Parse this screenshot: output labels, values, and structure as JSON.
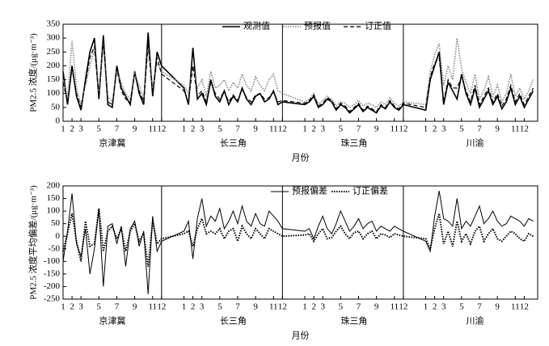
{
  "chart_data": [
    {
      "type": "line",
      "ylabel": "PM2.5 浓度/(μg·m⁻³)",
      "xlabel": "月份",
      "regions": [
        "京津冀",
        "长三角",
        "珠三角",
        "川渝"
      ],
      "xlim": [
        0,
        53
      ],
      "ylim": [
        0,
        350
      ],
      "yticks": [
        0,
        50,
        100,
        150,
        200,
        250,
        300,
        350
      ],
      "xticks": [
        {
          "value": 0,
          "label": "1"
        },
        {
          "value": 1,
          "label": "2"
        },
        {
          "value": 2,
          "label": "3"
        },
        {
          "value": 4,
          "label": "5"
        },
        {
          "value": 6,
          "label": "7"
        },
        {
          "value": 8,
          "label": "9"
        },
        {
          "value": 10,
          "label": "11"
        },
        {
          "value": 11,
          "label": "12"
        },
        {
          "value": 13.5,
          "label": "1"
        },
        {
          "value": 14.5,
          "label": "2"
        },
        {
          "value": 15.5,
          "label": "3"
        },
        {
          "value": 17.5,
          "label": "5"
        },
        {
          "value": 19.5,
          "label": "7"
        },
        {
          "value": 21.5,
          "label": "9"
        },
        {
          "value": 23.5,
          "label": "11"
        },
        {
          "value": 24.5,
          "label": "12"
        },
        {
          "value": 27,
          "label": "1"
        },
        {
          "value": 28,
          "label": "2"
        },
        {
          "value": 29,
          "label": "3"
        },
        {
          "value": 31,
          "label": "5"
        },
        {
          "value": 33,
          "label": "7"
        },
        {
          "value": 35,
          "label": "9"
        },
        {
          "value": 37,
          "label": "11"
        },
        {
          "value": 38,
          "label": "12"
        },
        {
          "value": 40.5,
          "label": "1"
        },
        {
          "value": 41.5,
          "label": "2"
        },
        {
          "value": 42.5,
          "label": "3"
        },
        {
          "value": 44.5,
          "label": "5"
        },
        {
          "value": 46.5,
          "label": "7"
        },
        {
          "value": 48.5,
          "label": "9"
        },
        {
          "value": 50.5,
          "label": "11"
        },
        {
          "value": 51.5,
          "label": "12"
        }
      ],
      "x": [
        0,
        0.5,
        1,
        1.5,
        2,
        2.5,
        3,
        3.5,
        4,
        4.5,
        5,
        5.5,
        6,
        6.5,
        7,
        7.5,
        8,
        8.5,
        9,
        9.5,
        10,
        10.5,
        11,
        13.5,
        14,
        14.5,
        15,
        15.5,
        16,
        16.5,
        17,
        17.5,
        18,
        18.5,
        19,
        19.5,
        20,
        20.5,
        21,
        21.5,
        22,
        22.5,
        23,
        23.5,
        24,
        24.5,
        27,
        27.5,
        28,
        28.5,
        29,
        29.5,
        30,
        30.5,
        31,
        31.5,
        32,
        32.5,
        33,
        33.5,
        34,
        34.5,
        35,
        35.5,
        36,
        36.5,
        37,
        37.5,
        38,
        40.5,
        41,
        41.5,
        42,
        42.5,
        43,
        43.5,
        44,
        44.5,
        45,
        45.5,
        46,
        46.5,
        47,
        47.5,
        48,
        48.5,
        49,
        49.5,
        50,
        50.5,
        51,
        51.5,
        52,
        52.5
      ],
      "series": [
        {
          "name": "观测值",
          "color": "#000000",
          "style": "solid",
          "width": 1.6,
          "values": [
            180,
            60,
            200,
            90,
            40,
            150,
            250,
            300,
            80,
            310,
            60,
            50,
            200,
            120,
            90,
            60,
            180,
            100,
            60,
            320,
            90,
            250,
            200,
            120,
            60,
            265,
            80,
            100,
            60,
            150,
            90,
            70,
            110,
            60,
            90,
            70,
            120,
            80,
            60,
            90,
            100,
            70,
            80,
            110,
            60,
            70,
            60,
            70,
            90,
            50,
            60,
            80,
            70,
            40,
            60,
            50,
            30,
            45,
            60,
            35,
            50,
            40,
            30,
            55,
            45,
            70,
            50,
            40,
            60,
            40,
            150,
            200,
            250,
            60,
            140,
            110,
            80,
            170,
            100,
            60,
            120,
            50,
            80,
            110,
            60,
            90,
            45,
            70,
            120,
            60,
            90,
            50,
            80,
            110
          ]
        },
        {
          "name": "预报值",
          "color": "#888888",
          "style": "dotted",
          "width": 1.6,
          "values": [
            150,
            80,
            290,
            120,
            60,
            130,
            200,
            260,
            100,
            280,
            90,
            70,
            180,
            140,
            100,
            80,
            170,
            130,
            80,
            270,
            120,
            210,
            180,
            130,
            100,
            200,
            120,
            150,
            90,
            180,
            120,
            130,
            150,
            110,
            140,
            120,
            170,
            130,
            110,
            160,
            130,
            110,
            150,
            170,
            110,
            100,
            70,
            80,
            100,
            60,
            75,
            90,
            80,
            55,
            70,
            65,
            50,
            60,
            75,
            55,
            65,
            60,
            50,
            70,
            60,
            85,
            65,
            55,
            70,
            60,
            180,
            240,
            280,
            130,
            200,
            150,
            300,
            190,
            140,
            100,
            170,
            80,
            110,
            160,
            90,
            130,
            70,
            100,
            170,
            90,
            120,
            80,
            110,
            150
          ]
        },
        {
          "name": "订正值",
          "color": "#000000",
          "style": "dashed",
          "width": 1.2,
          "values": [
            140,
            70,
            190,
            100,
            50,
            140,
            230,
            270,
            90,
            290,
            70,
            60,
            190,
            110,
            80,
            70,
            170,
            110,
            70,
            280,
            100,
            230,
            170,
            110,
            70,
            200,
            90,
            110,
            70,
            140,
            100,
            80,
            110,
            70,
            95,
            75,
            115,
            85,
            70,
            95,
            100,
            80,
            85,
            105,
            70,
            75,
            65,
            75,
            95,
            55,
            65,
            85,
            75,
            45,
            65,
            55,
            35,
            50,
            65,
            40,
            55,
            45,
            35,
            60,
            50,
            75,
            55,
            45,
            65,
            50,
            160,
            210,
            230,
            70,
            150,
            120,
            120,
            160,
            110,
            70,
            130,
            60,
            90,
            120,
            70,
            100,
            55,
            80,
            130,
            70,
            100,
            60,
            90,
            120
          ]
        }
      ]
    },
    {
      "type": "line",
      "ylabel": "PM2.5 浓度平均偏差/(μg·m⁻³)",
      "xlabel": "月份",
      "regions": [
        "京津冀",
        "长三角",
        "珠三角",
        "川渝"
      ],
      "xlim": [
        0,
        53
      ],
      "ylim": [
        -250,
        200
      ],
      "yticks": [
        -250,
        -200,
        -150,
        -100,
        -50,
        0,
        50,
        100,
        150,
        200
      ],
      "xticks": [
        {
          "value": 0,
          "label": "1"
        },
        {
          "value": 1,
          "label": "2"
        },
        {
          "value": 2,
          "label": "3"
        },
        {
          "value": 4,
          "label": "5"
        },
        {
          "value": 6,
          "label": "7"
        },
        {
          "value": 8,
          "label": "9"
        },
        {
          "value": 10,
          "label": "11"
        },
        {
          "value": 11,
          "label": "12"
        },
        {
          "value": 13.5,
          "label": "1"
        },
        {
          "value": 14.5,
          "label": "2"
        },
        {
          "value": 15.5,
          "label": "3"
        },
        {
          "value": 17.5,
          "label": "5"
        },
        {
          "value": 19.5,
          "label": "7"
        },
        {
          "value": 21.5,
          "label": "9"
        },
        {
          "value": 23.5,
          "label": "11"
        },
        {
          "value": 24.5,
          "label": "12"
        },
        {
          "value": 27,
          "label": "1"
        },
        {
          "value": 28,
          "label": "2"
        },
        {
          "value": 29,
          "label": "3"
        },
        {
          "value": 31,
          "label": "5"
        },
        {
          "value": 33,
          "label": "7"
        },
        {
          "value": 35,
          "label": "9"
        },
        {
          "value": 37,
          "label": "11"
        },
        {
          "value": 38,
          "label": "12"
        },
        {
          "value": 40.5,
          "label": "1"
        },
        {
          "value": 41.5,
          "label": "2"
        },
        {
          "value": 42.5,
          "label": "3"
        },
        {
          "value": 44.5,
          "label": "5"
        },
        {
          "value": 46.5,
          "label": "7"
        },
        {
          "value": 48.5,
          "label": "9"
        },
        {
          "value": 50.5,
          "label": "11"
        },
        {
          "value": 51.5,
          "label": "12"
        }
      ],
      "x": [
        0,
        0.5,
        1,
        1.5,
        2,
        2.5,
        3,
        3.5,
        4,
        4.5,
        5,
        5.5,
        6,
        6.5,
        7,
        7.5,
        8,
        8.5,
        9,
        9.5,
        10,
        10.5,
        11,
        13.5,
        14,
        14.5,
        15,
        15.5,
        16,
        16.5,
        17,
        17.5,
        18,
        18.5,
        19,
        19.5,
        20,
        20.5,
        21,
        21.5,
        22,
        22.5,
        23,
        23.5,
        24,
        24.5,
        27,
        27.5,
        28,
        28.5,
        29,
        29.5,
        30,
        30.5,
        31,
        31.5,
        32,
        32.5,
        33,
        33.5,
        34,
        34.5,
        35,
        35.5,
        36,
        36.5,
        37,
        37.5,
        38,
        40.5,
        41,
        41.5,
        42,
        42.5,
        43,
        43.5,
        44,
        44.5,
        45,
        45.5,
        46,
        46.5,
        47,
        47.5,
        48,
        48.5,
        49,
        49.5,
        50,
        50.5,
        51,
        51.5,
        52,
        52.5
      ],
      "series": [
        {
          "name": "预报偏差",
          "color": "#000000",
          "style": "solid",
          "width": 1,
          "values": [
            -100,
            20,
            170,
            -30,
            -80,
            30,
            -150,
            -50,
            110,
            -200,
            40,
            50,
            -30,
            40,
            -120,
            30,
            60,
            -40,
            20,
            -230,
            80,
            -60,
            -20,
            20,
            60,
            -90,
            70,
            150,
            40,
            80,
            60,
            110,
            30,
            60,
            100,
            50,
            120,
            60,
            40,
            90,
            50,
            40,
            100,
            80,
            60,
            30,
            20,
            30,
            -10,
            40,
            80,
            30,
            10,
            50,
            100,
            60,
            20,
            40,
            70,
            30,
            50,
            60,
            20,
            40,
            30,
            20,
            40,
            30,
            20,
            -20,
            -60,
            80,
            180,
            70,
            60,
            40,
            150,
            30,
            60,
            40,
            80,
            120,
            50,
            70,
            100,
            60,
            40,
            50,
            80,
            70,
            60,
            40,
            70,
            60
          ]
        },
        {
          "name": "订正偏差",
          "color": "#000000",
          "style": "dotted",
          "width": 2,
          "values": [
            -60,
            10,
            90,
            -20,
            -100,
            60,
            -40,
            -30,
            110,
            -60,
            20,
            40,
            -10,
            30,
            -60,
            20,
            50,
            -20,
            10,
            -120,
            60,
            -30,
            -10,
            10,
            20,
            -40,
            30,
            70,
            10,
            20,
            10,
            30,
            -10,
            20,
            30,
            -20,
            40,
            10,
            -10,
            30,
            10,
            -10,
            30,
            20,
            10,
            0,
            5,
            10,
            -20,
            10,
            30,
            -10,
            -5,
            20,
            40,
            10,
            -10,
            15,
            20,
            -10,
            10,
            20,
            -10,
            10,
            5,
            -5,
            10,
            5,
            0,
            -10,
            -50,
            30,
            90,
            -30,
            20,
            -40,
            60,
            -20,
            10,
            -30,
            20,
            40,
            -20,
            10,
            30,
            -10,
            -20,
            0,
            20,
            10,
            -10,
            -20,
            10,
            0
          ]
        }
      ]
    }
  ]
}
